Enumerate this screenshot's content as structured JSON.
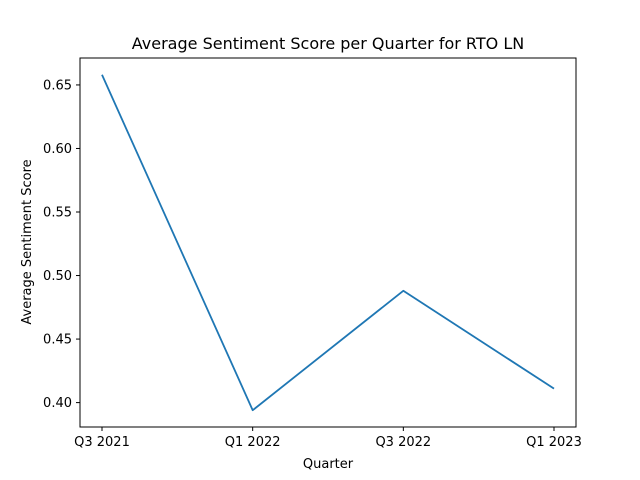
{
  "chart_data": {
    "type": "line",
    "title": "Average Sentiment Score per Quarter for RTO LN",
    "xlabel": "Quarter",
    "ylabel": "Average Sentiment Score",
    "categories": [
      "Q3 2021",
      "Q1 2022",
      "Q3 2022",
      "Q1 2023"
    ],
    "series": [
      {
        "values": [
          0.658,
          0.394,
          0.488,
          0.411
        ]
      }
    ],
    "y_ticks": [
      0.4,
      0.45,
      0.5,
      0.55,
      0.6,
      0.65
    ],
    "y_tick_labels": [
      "0.40",
      "0.45",
      "0.50",
      "0.55",
      "0.60",
      "0.65"
    ],
    "ylim": [
      0.3808,
      0.6712
    ],
    "grid": false,
    "line_color": "#1f77b4"
  }
}
